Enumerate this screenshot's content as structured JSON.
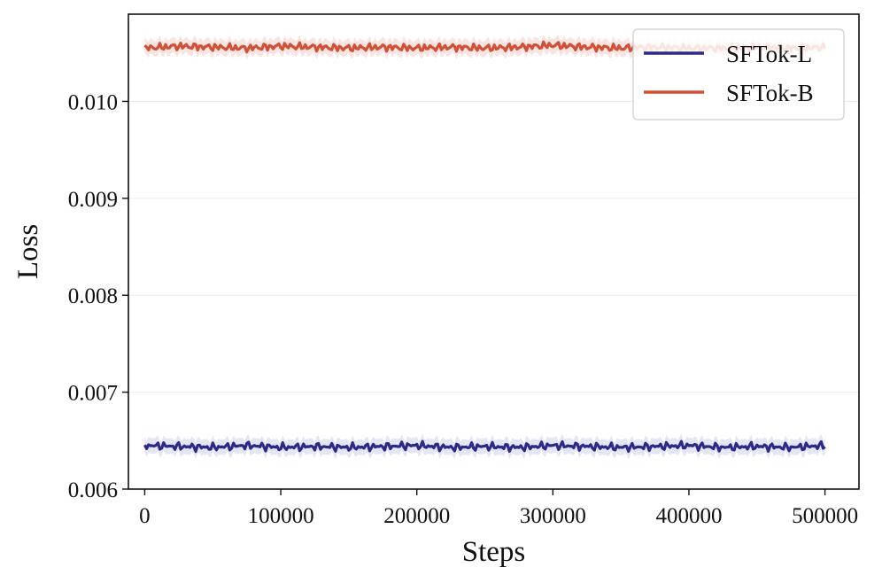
{
  "chart_data": {
    "type": "line",
    "title": "",
    "xlabel": "Steps",
    "ylabel": "Loss",
    "xlim": [
      -12000,
      525000
    ],
    "ylim": [
      0.006,
      0.0109
    ],
    "xticks": [
      {
        "value": 0,
        "label": "0"
      },
      {
        "value": 100000,
        "label": "100000"
      },
      {
        "value": 200000,
        "label": "200000"
      },
      {
        "value": 300000,
        "label": "300000"
      },
      {
        "value": 400000,
        "label": "400000"
      },
      {
        "value": 500000,
        "label": "500000"
      }
    ],
    "yticks": [
      {
        "value": 0.006,
        "label": "0.006"
      },
      {
        "value": 0.007,
        "label": "0.007"
      },
      {
        "value": 0.008,
        "label": "0.008"
      },
      {
        "value": 0.009,
        "label": "0.009"
      },
      {
        "value": 0.01,
        "label": "0.010"
      }
    ],
    "grid": "horizontal",
    "legend_position": "top-right",
    "series": [
      {
        "name": "SFTok-L",
        "color": "#2b2a86",
        "band_color": "#dfe0f3",
        "band": 8e-05,
        "x": [
          0,
          25000,
          50000,
          75000,
          100000,
          125000,
          150000,
          175000,
          200000,
          225000,
          250000,
          275000,
          300000,
          325000,
          350000,
          375000,
          400000,
          425000,
          450000,
          475000,
          500000
        ],
        "y": [
          0.00645,
          0.00644,
          0.00643,
          0.00645,
          0.00643,
          0.00644,
          0.00643,
          0.00644,
          0.00645,
          0.00643,
          0.00644,
          0.00643,
          0.00645,
          0.00644,
          0.00643,
          0.00644,
          0.00645,
          0.00643,
          0.00644,
          0.00643,
          0.00645
        ]
      },
      {
        "name": "SFTok-B",
        "color": "#cf5137",
        "band_color": "#f7dfdb",
        "band": 8e-05,
        "x": [
          0,
          25000,
          50000,
          75000,
          100000,
          125000,
          150000,
          175000,
          200000,
          225000,
          250000,
          275000,
          300000,
          325000,
          350000,
          375000,
          400000,
          425000,
          450000,
          475000,
          500000
        ],
        "y": [
          0.01055,
          0.01057,
          0.01056,
          0.01055,
          0.01057,
          0.01056,
          0.01055,
          0.01056,
          0.01055,
          0.01056,
          0.01055,
          0.01056,
          0.01058,
          0.01056,
          0.01055,
          0.01056,
          0.01055,
          0.01055,
          0.01056,
          0.01055,
          0.01056
        ]
      }
    ]
  }
}
